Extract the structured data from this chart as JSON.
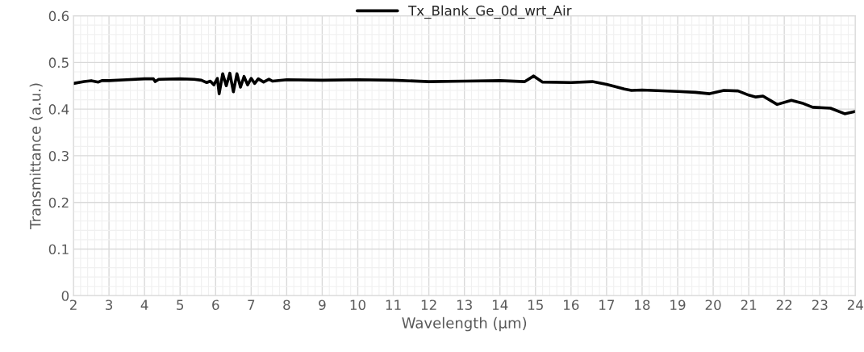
{
  "chart_data": {
    "type": "line",
    "xlabel": "Wavelength (µm)",
    "ylabel": "Transmittance (a.u.)",
    "xlim": [
      2,
      24
    ],
    "xticks": [
      2,
      3,
      4,
      5,
      6,
      7,
      8,
      9,
      10,
      11,
      12,
      13,
      14,
      15,
      16,
      17,
      18,
      19,
      20,
      21,
      22,
      23,
      24
    ],
    "ylim": [
      0,
      0.6
    ],
    "yticks": [
      {
        "value": 0,
        "label": "0"
      },
      0.1,
      0.2,
      0.3,
      0.4,
      0.5,
      0.6
    ],
    "grid": true,
    "legend": "top",
    "marker": "none",
    "line_style": "solid",
    "series": [
      {
        "name": "Tx_Blank_Ge_0d_wrt_Air",
        "color": "#000000",
        "x": [
          2,
          2.3,
          2.5,
          2.7,
          2.8,
          3,
          3.5,
          4,
          4.25,
          4.3,
          4.4,
          5,
          5.4,
          5.6,
          5.75,
          5.85,
          5.95,
          6.05,
          6.1,
          6.2,
          6.3,
          6.4,
          6.5,
          6.6,
          6.7,
          6.8,
          6.9,
          7.0,
          7.1,
          7.2,
          7.35,
          7.5,
          7.6,
          8,
          9,
          10,
          11,
          12,
          13,
          14,
          14.7,
          14.95,
          15.2,
          16,
          16.6,
          17,
          17.5,
          17.7,
          18,
          19,
          19.5,
          19.9,
          20.3,
          20.7,
          21,
          21.2,
          21.4,
          21.8,
          22.2,
          22.5,
          22.8,
          23.3,
          23.7,
          24
        ],
        "values": [
          0.455,
          0.459,
          0.461,
          0.458,
          0.461,
          0.461,
          0.463,
          0.465,
          0.465,
          0.459,
          0.464,
          0.465,
          0.464,
          0.462,
          0.457,
          0.46,
          0.452,
          0.466,
          0.433,
          0.476,
          0.45,
          0.477,
          0.437,
          0.476,
          0.447,
          0.47,
          0.452,
          0.466,
          0.455,
          0.465,
          0.458,
          0.464,
          0.46,
          0.463,
          0.462,
          0.463,
          0.462,
          0.459,
          0.46,
          0.461,
          0.459,
          0.471,
          0.458,
          0.457,
          0.459,
          0.453,
          0.443,
          0.44,
          0.441,
          0.438,
          0.436,
          0.433,
          0.44,
          0.439,
          0.43,
          0.426,
          0.428,
          0.41,
          0.419,
          0.413,
          0.404,
          0.402,
          0.39,
          0.395
        ]
      }
    ]
  }
}
